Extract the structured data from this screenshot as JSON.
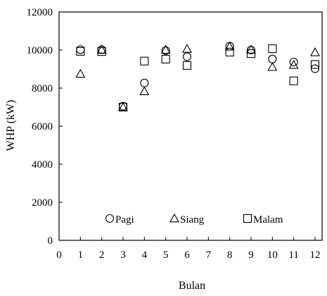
{
  "chart_data": {
    "type": "scatter",
    "title": "",
    "xlabel": "Bulan",
    "ylabel": "WHP (kW)",
    "xlim": [
      0,
      12
    ],
    "ylim": [
      0,
      12000
    ],
    "xticks": [
      "0",
      "1",
      "2",
      "3",
      "4",
      "5",
      "6",
      "7",
      "8",
      "9",
      "10",
      "11",
      "12"
    ],
    "yticks": [
      "0",
      "2000",
      "4000",
      "6000",
      "8000",
      "10000",
      "12000"
    ],
    "grid": false,
    "legend_position": "bottom-inside",
    "series": [
      {
        "name": "Pagi",
        "marker": "circle",
        "x": [
          1,
          2,
          3,
          4,
          5,
          6,
          8,
          9,
          10,
          11,
          12
        ],
        "y": [
          10020,
          10020,
          7050,
          8270,
          9970,
          9650,
          10200,
          10000,
          9530,
          9370,
          9020
        ]
      },
      {
        "name": "Siang",
        "marker": "triangle",
        "x": [
          1,
          2,
          3,
          4,
          5,
          6,
          8,
          9,
          10,
          11,
          12
        ],
        "y": [
          8750,
          10020,
          7000,
          7830,
          10010,
          10060,
          10180,
          10020,
          9110,
          9220,
          9880
        ]
      },
      {
        "name": "Malam",
        "marker": "square",
        "x": [
          1,
          2,
          3,
          4,
          5,
          6,
          8,
          9,
          10,
          11,
          12
        ],
        "y": [
          9930,
          9920,
          7000,
          9420,
          9520,
          9190,
          9890,
          9810,
          10070,
          8380,
          9240
        ]
      }
    ]
  }
}
